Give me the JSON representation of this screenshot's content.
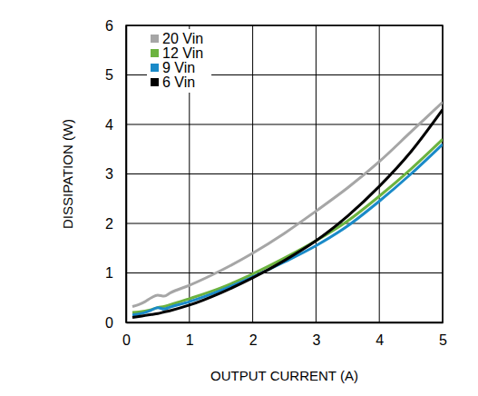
{
  "chart_data": {
    "type": "line",
    "x_label": "OUTPUT CURRENT (A)",
    "y_label": "DISSIPATION (W)",
    "x": [
      0.1,
      0.2,
      0.3,
      0.4,
      0.5,
      0.6,
      0.7,
      1,
      1.5,
      2,
      2.5,
      3,
      3.5,
      4,
      4.5,
      5
    ],
    "series": [
      {
        "name": "20 Vin",
        "color": "#a6a6a6",
        "values": [
          0.32,
          0.36,
          0.42,
          0.5,
          0.55,
          0.53,
          0.6,
          0.75,
          1.05,
          1.4,
          1.8,
          2.25,
          2.72,
          3.25,
          3.85,
          4.45
        ]
      },
      {
        "name": "12 Vin",
        "color": "#6cb33f",
        "values": [
          0.2,
          0.21,
          0.23,
          0.26,
          0.3,
          0.32,
          0.36,
          0.48,
          0.7,
          0.98,
          1.3,
          1.65,
          2.05,
          2.55,
          3.1,
          3.7
        ]
      },
      {
        "name": "9 Vin",
        "color": "#1a8ac8",
        "values": [
          0.15,
          0.17,
          0.2,
          0.25,
          0.3,
          0.27,
          0.31,
          0.42,
          0.65,
          0.92,
          1.22,
          1.55,
          1.95,
          2.45,
          3.0,
          3.6
        ]
      },
      {
        "name": "6 Vin",
        "color": "#000000",
        "values": [
          0.1,
          0.12,
          0.14,
          0.16,
          0.18,
          0.21,
          0.24,
          0.35,
          0.6,
          0.9,
          1.25,
          1.65,
          2.15,
          2.75,
          3.45,
          4.3
        ]
      }
    ],
    "xlim": [
      0,
      5
    ],
    "xticks": [
      0,
      1,
      2,
      3,
      4,
      5
    ],
    "ylim": [
      0,
      6
    ],
    "yticks": [
      0,
      1,
      2,
      3,
      4,
      5,
      6
    ],
    "grid": true,
    "legend": "top-left"
  }
}
